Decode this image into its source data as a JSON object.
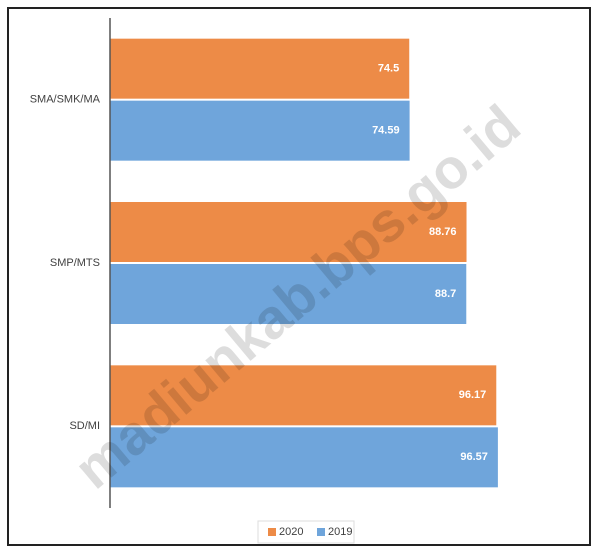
{
  "chart_data": {
    "type": "hbar",
    "categories": [
      "SMA/SMK/MA",
      "SMP/MTS",
      "SD/MI"
    ],
    "series": [
      {
        "name": "2020",
        "color": "#ED8B47",
        "values": [
          74.5,
          88.76,
          96.17
        ]
      },
      {
        "name": "2019",
        "color": "#6FA5DB",
        "values": [
          74.59,
          88.7,
          96.57
        ]
      }
    ],
    "xlim": [
      0,
      120
    ],
    "legend": "bottom",
    "watermark": "madiunkab.bps.go.id"
  }
}
